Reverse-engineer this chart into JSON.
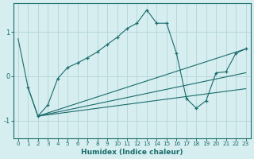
{
  "xlabel": "Humidex (Indice chaleur)",
  "background_color": "#d6eef0",
  "line_color": "#1a6b6b",
  "grid_color": "#b8d8dc",
  "xlim": [
    -0.5,
    23.5
  ],
  "ylim": [
    -1.4,
    1.65
  ],
  "yticks": [
    -1,
    0,
    1
  ],
  "xticks": [
    0,
    1,
    2,
    3,
    4,
    5,
    6,
    7,
    8,
    9,
    10,
    11,
    12,
    13,
    14,
    15,
    16,
    17,
    18,
    19,
    20,
    21,
    22,
    23
  ],
  "steep_line": {
    "x": [
      0,
      1,
      2
    ],
    "y": [
      0.85,
      -0.25,
      -0.9
    ]
  },
  "main_curve": {
    "x": [
      1,
      2,
      3,
      4,
      5,
      6,
      7,
      8,
      9,
      10,
      11,
      12,
      13,
      14,
      15,
      16,
      17,
      18,
      19,
      20,
      21,
      22,
      23
    ],
    "y": [
      -0.25,
      -0.9,
      -0.65,
      -0.05,
      0.2,
      0.3,
      0.42,
      0.55,
      0.72,
      0.88,
      1.08,
      1.2,
      1.5,
      1.2,
      1.2,
      0.52,
      -0.5,
      -0.72,
      -0.55,
      0.08,
      0.1,
      0.52,
      0.62
    ]
  },
  "fan_lines": [
    {
      "x": [
        2,
        23
      ],
      "y": [
        -0.9,
        0.62
      ]
    },
    {
      "x": [
        2,
        23
      ],
      "y": [
        -0.9,
        0.08
      ]
    },
    {
      "x": [
        2,
        23
      ],
      "y": [
        -0.9,
        -0.28
      ]
    }
  ]
}
